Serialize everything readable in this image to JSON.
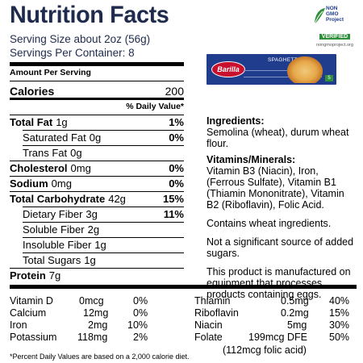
{
  "title": "Nutrition Facts",
  "serving_size": "Serving Size about 2oz (56g)",
  "servings_per_container": "Servings Per Container: 8",
  "amount_per_serving": "Amount Per Serving",
  "calories": {
    "label": "Calories",
    "value": "200"
  },
  "dv_header": "% Daily Value*",
  "nutrients": [
    {
      "label": "Total Fat",
      "amount": "1g",
      "dv": "1%"
    },
    {
      "label": "Saturated Fat",
      "amount": "0g",
      "dv": "0%"
    },
    {
      "label": "Trans Fat",
      "amount": "0g",
      "dv": ""
    },
    {
      "label": "Cholesterol",
      "amount": "0mg",
      "dv": "0%"
    },
    {
      "label": "Sodium",
      "amount": "0mg",
      "dv": "0%"
    },
    {
      "label": "Total Carbohydrate",
      "amount": "42g",
      "dv": "15%"
    },
    {
      "label": "Dietary Fiber",
      "amount": "3g",
      "dv": "11%"
    },
    {
      "label": "Soluble Fiber",
      "amount": "2g",
      "dv": ""
    },
    {
      "label": "Insoluble Fiber",
      "amount": "1g",
      "dv": ""
    },
    {
      "label": "Total Sugars",
      "amount": "1g",
      "dv": ""
    },
    {
      "label": "Protein",
      "amount": "7g",
      "dv": ""
    }
  ],
  "vitamins_left": [
    {
      "name": "Vitamin D",
      "amount": "0mcg",
      "dv": "0%"
    },
    {
      "name": "Calcium",
      "amount": "12mg",
      "dv": "0%"
    },
    {
      "name": "Iron",
      "amount": "2mg",
      "dv": "10%"
    },
    {
      "name": "Potassium",
      "amount": "118mg",
      "dv": "2%"
    }
  ],
  "vitamins_right": [
    {
      "name": "Thiamin",
      "amount": "0.5mg",
      "dv": "40%"
    },
    {
      "name": "Riboflavin",
      "amount": "0.2mg",
      "dv": "15%"
    },
    {
      "name": "Niacin",
      "amount": "5mg",
      "dv": "30%"
    },
    {
      "name": "Folate",
      "amount": "199mcg DFE",
      "dv": "50%"
    }
  ],
  "folate_note": "(112mcg folic acid)",
  "footnote": "*Percent Daily Values are based on a 2,000 calorie diet.",
  "ingredients": {
    "heading": "Ingredients:",
    "text": "Semolina (wheat), durum wheat flour.",
    "vm_heading": "Vitamins/Minerals:",
    "vm_text": "Vitamin B3 (Niacin), Iron, (Ferrous Sulfate), Vitamin B1 (Thiamin Mononitrate), Vitamin B2 (Riboflavin), Folic Acid.",
    "allergen": "Contains wheat ingredients.",
    "sugar_note": "Not a significant source of added sugars.",
    "facility_note": "This product is manufactured on equipment that processes products containing eggs."
  },
  "package": {
    "brand": "Barilla",
    "product": "SPAGHETTI",
    "number": "5"
  },
  "non_gmo": {
    "line1": "NON",
    "line2": "GMO",
    "line3": "Project",
    "verified": "VERIFIED",
    "site": "nongmoproject.org"
  }
}
